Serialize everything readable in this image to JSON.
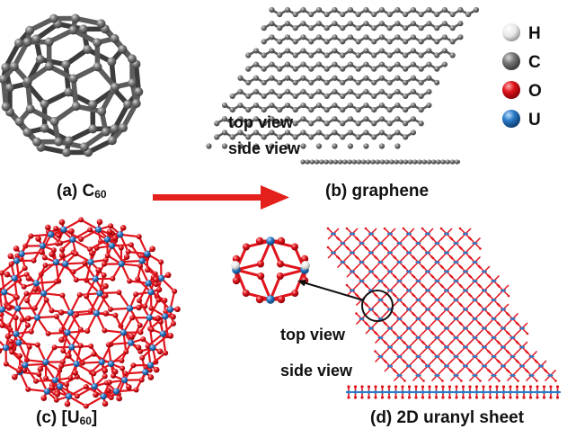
{
  "panels": {
    "a": {
      "prefix": "(a) C",
      "sub": "60"
    },
    "b": {
      "label": "(b) graphene",
      "top_view": "top view",
      "side_view": "side view"
    },
    "c": {
      "prefix": "(c) [U",
      "sub": "60",
      "suffix": "]"
    },
    "d": {
      "label": "(d) 2D uranyl sheet",
      "top_view": "top view",
      "side_view": "side view"
    }
  },
  "legend": [
    {
      "symbol": "H",
      "color": "#e8e8e8",
      "icon": "hydrogen-atom-icon"
    },
    {
      "symbol": "C",
      "color": "#6e6e6e",
      "icon": "carbon-atom-icon"
    },
    {
      "symbol": "O",
      "color": "#e0141c",
      "icon": "oxygen-atom-icon"
    },
    {
      "symbol": "U",
      "color": "#2b7cc9",
      "icon": "uranium-atom-icon"
    }
  ],
  "colors": {
    "carbon": "#6e6e6e",
    "carbon_bond": "#5c5c5c",
    "oxygen": "#e0141c",
    "uranium": "#2b7cc9",
    "hydrogen": "#e8e8e8",
    "arrow": "#e3201b"
  }
}
